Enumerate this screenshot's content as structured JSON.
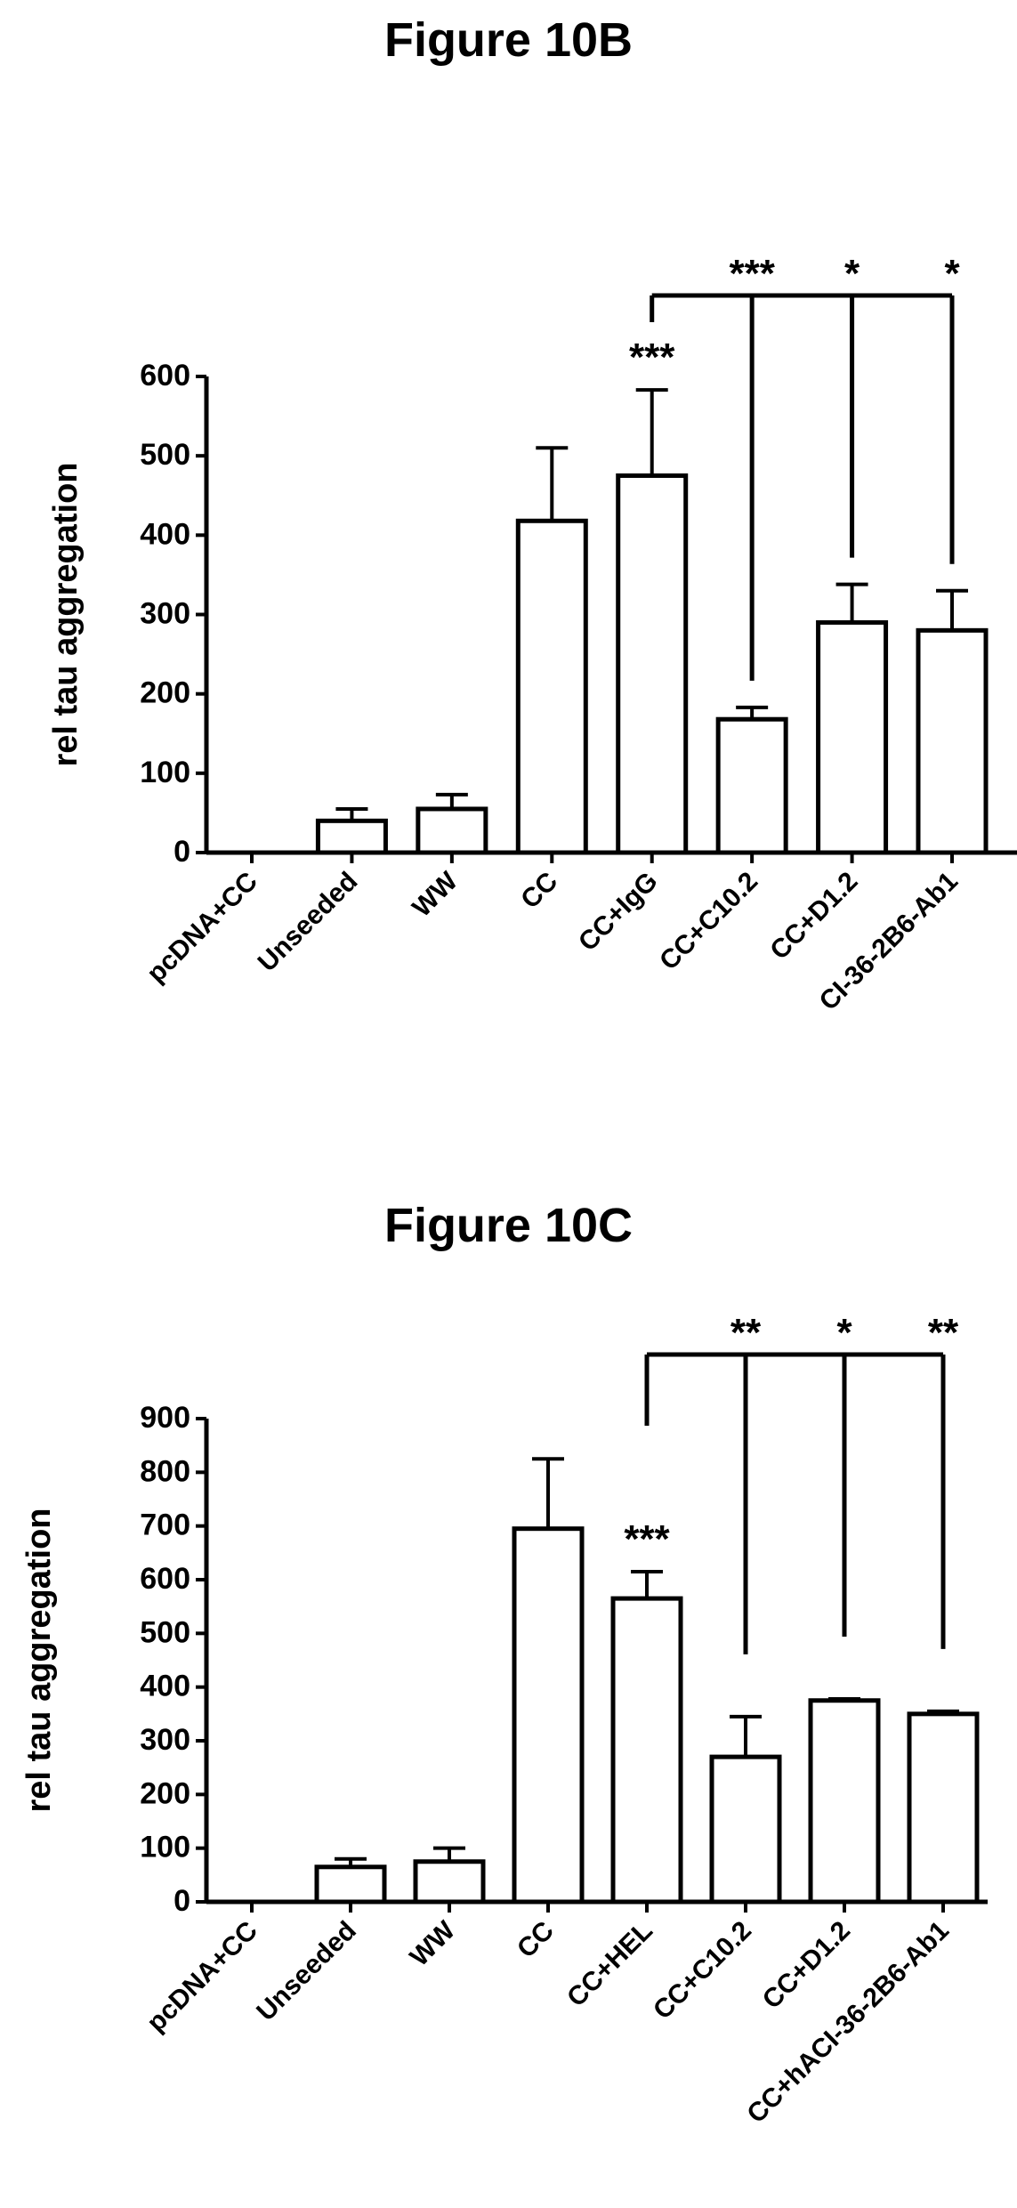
{
  "chart_data": [
    {
      "type": "bar",
      "title": "Figure 10B",
      "ylabel": "rel tau aggregation",
      "xlabel": "",
      "ylim": [
        0,
        600
      ],
      "yticks": [
        0,
        100,
        200,
        300,
        400,
        500,
        600
      ],
      "categories": [
        "pcDNA+CC",
        "Unseeded",
        "WW",
        "CC",
        "CC+IgG",
        "CC+C10.2",
        "CC+D1.2",
        "CI-36-2B6-Ab1"
      ],
      "values": [
        0,
        40,
        55,
        418,
        475,
        168,
        290,
        280
      ],
      "errors": [
        0,
        15,
        18,
        92,
        108,
        15,
        48,
        50
      ],
      "annotations": [
        {
          "category": "CC+IgG",
          "text": "***"
        }
      ],
      "bracket": {
        "from": "CC+IgG",
        "to": "CI-36-2B6-Ab1",
        "labels": [
          {
            "category": "CC+C10.2",
            "text": "***"
          },
          {
            "category": "CC+D1.2",
            "text": "*"
          },
          {
            "category": "CI-36-2B6-Ab1",
            "text": "*"
          }
        ]
      },
      "grid": false,
      "legend": "none"
    },
    {
      "type": "bar",
      "title": "Figure 10C",
      "ylabel": "rel tau aggregation",
      "xlabel": "",
      "ylim": [
        0,
        900
      ],
      "yticks": [
        0,
        100,
        200,
        300,
        400,
        500,
        600,
        700,
        800,
        900
      ],
      "categories": [
        "pcDNA+CC",
        "Unseeded",
        "WW",
        "CC",
        "CC+HEL",
        "CC+C10.2",
        "CC+D1.2",
        "CC+hACI-36-2B6-Ab1"
      ],
      "values": [
        0,
        65,
        75,
        695,
        565,
        270,
        375,
        350
      ],
      "errors": [
        0,
        15,
        25,
        130,
        50,
        75,
        3,
        5
      ],
      "annotations": [
        {
          "category": "CC+HEL",
          "text": "***"
        }
      ],
      "bracket": {
        "from": "CC+HEL",
        "to": "CC+hACI-36-2B6-Ab1",
        "labels": [
          {
            "category": "CC+C10.2",
            "text": "**"
          },
          {
            "category": "CC+D1.2",
            "text": "*"
          },
          {
            "category": "CC+hACI-36-2B6-Ab1",
            "text": "**"
          }
        ]
      },
      "grid": false,
      "legend": "none"
    }
  ]
}
